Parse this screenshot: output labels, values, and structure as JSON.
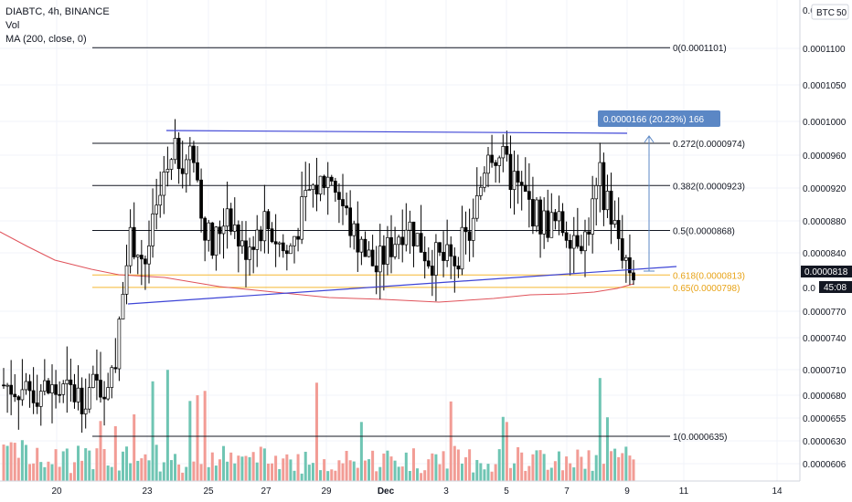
{
  "header": {
    "symbol_line": "DIABTC, 4h, BINANCE",
    "vol_label": "Vol",
    "ma_label": "MA (200, close, 0)"
  },
  "y_axis": {
    "currency_label": "BTC",
    "scale_label": "50",
    "ticks": [
      "0.0001100",
      "0.0001050",
      "0.0001000",
      "0.0000960",
      "0.0000920",
      "0.0000880",
      "0.0000840",
      "0.0000770",
      "0.0000740",
      "0.0000710",
      "0.0000680",
      "0.0000655",
      "0.0000630",
      "0.0000606"
    ],
    "last_price": "0.0000818",
    "countdown": "45:08",
    "partial_top": "0.0",
    "partial_bottom": "0.0"
  },
  "x_axis": {
    "ticks": [
      "20",
      "23",
      "25",
      "27",
      "29",
      "Dec",
      "3",
      "5",
      "7",
      "9",
      "11",
      "14"
    ]
  },
  "measure_box": {
    "text": "0.0000166 (20.23%) 166"
  },
  "chart_data": {
    "type": "candlestick",
    "symbol": "DIABTC",
    "timeframe": "4h",
    "exchange": "BINANCE",
    "y_range": [
      5.9e-05,
      0.000114
    ],
    "fib_levels": [
      {
        "label": "0(0.0001101)",
        "value": 0.0001101,
        "color": "#131722"
      },
      {
        "label": "0.272(0.0000974)",
        "value": 9.74e-05,
        "color": "#131722"
      },
      {
        "label": "0.382(0.0000923)",
        "value": 9.23e-05,
        "color": "#131722"
      },
      {
        "label": "0.5(0.0000868)",
        "value": 8.68e-05,
        "color": "#131722"
      },
      {
        "label": "0.618(0.0000813)",
        "value": 8.13e-05,
        "color": "#f5b731"
      },
      {
        "label": "0.65(0.0000798)",
        "value": 7.98e-05,
        "color": "#f5b731"
      },
      {
        "label": "1(0.0000635)",
        "value": 6.35e-05,
        "color": "#131722"
      }
    ],
    "colors": {
      "up": "#ffffff",
      "down": "#000000",
      "vol_up": "#6fc5b3",
      "vol_down": "#f29c95",
      "ma": "#e0525a",
      "trendline": "#3d44d6",
      "measure": "#5b87c5",
      "grid": "#f0f3fa"
    }
  }
}
